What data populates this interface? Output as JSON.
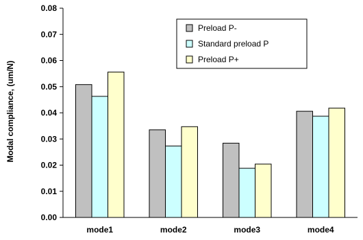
{
  "chart_data": {
    "type": "bar",
    "categories": [
      "mode1",
      "mode2",
      "mode3",
      "mode4"
    ],
    "series": [
      {
        "name": "Preload P-",
        "color": "#c0c0c0",
        "values": [
          0.0508,
          0.0335,
          0.0284,
          0.0406
        ]
      },
      {
        "name": "Standard preload P",
        "color": "#ccffff",
        "values": [
          0.0463,
          0.0273,
          0.0188,
          0.0387
        ]
      },
      {
        "name": "Preload P+",
        "color": "#ffffcc",
        "values": [
          0.0556,
          0.0347,
          0.0204,
          0.0418
        ]
      }
    ],
    "ylabel": "Modal compliance, (um/N)",
    "xlabel": "",
    "ylim": [
      0,
      0.08
    ],
    "yticks": [
      "0.00",
      "0.01",
      "0.02",
      "0.03",
      "0.04",
      "0.05",
      "0.06",
      "0.07",
      "0.08"
    ],
    "grid": false,
    "legend_position": "top-right"
  }
}
